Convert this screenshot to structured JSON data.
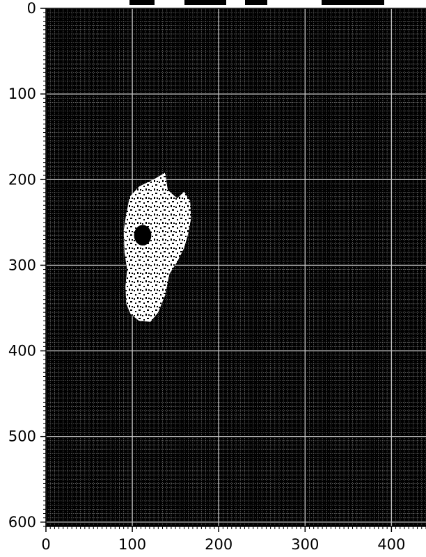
{
  "chart_data": {
    "type": "heatmap",
    "title": "",
    "xlabel": "",
    "ylabel": "",
    "xlim": [
      0,
      440
    ],
    "ylim": [
      605,
      0
    ],
    "x_ticks": [
      0,
      100,
      200,
      300,
      400
    ],
    "y_ticks": [
      0,
      100,
      200,
      300,
      400,
      500,
      600
    ],
    "x_tick_labels": [
      "0",
      "100",
      "200",
      "300",
      "400"
    ],
    "y_tick_labels": [
      "0",
      "100",
      "200",
      "300",
      "400",
      "500",
      "600"
    ],
    "grid": true,
    "minor_grid_step": 5,
    "colors": {
      "background": "#000000",
      "foreground": "#ffffff",
      "major_grid": "#bfbfbf",
      "minor_grid": "#6e6e6e"
    },
    "mask_region": {
      "outline": [
        [
          138,
          192
        ],
        [
          126,
          199
        ],
        [
          108,
          208
        ],
        [
          97,
          220
        ],
        [
          93,
          240
        ],
        [
          90,
          260
        ],
        [
          91,
          285
        ],
        [
          94,
          305
        ],
        [
          92,
          325
        ],
        [
          93,
          345
        ],
        [
          98,
          357
        ],
        [
          108,
          365
        ],
        [
          121,
          366
        ],
        [
          130,
          355
        ],
        [
          138,
          335
        ],
        [
          143,
          310
        ],
        [
          152,
          296
        ],
        [
          160,
          280
        ],
        [
          165,
          262
        ],
        [
          168,
          245
        ],
        [
          167,
          225
        ],
        [
          160,
          214
        ],
        [
          152,
          222
        ],
        [
          141,
          212
        ]
      ],
      "hole": {
        "center": [
          112,
          265
        ],
        "radius": [
          10,
          12
        ]
      }
    }
  }
}
